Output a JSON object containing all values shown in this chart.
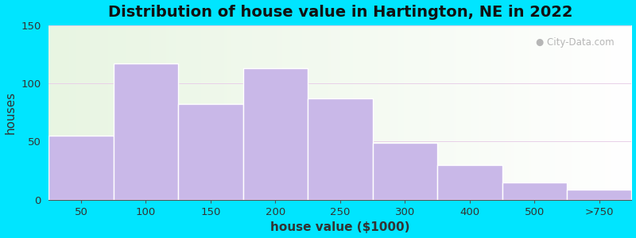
{
  "title": "Distribution of house value in Hartington, NE in 2022",
  "xlabel": "house value ($1000)",
  "ylabel": "houses",
  "categories": [
    "50",
    "100",
    "150",
    "200",
    "250",
    "300",
    "400",
    "500",
    ">750"
  ],
  "values": [
    55,
    117,
    82,
    113,
    87,
    49,
    30,
    15,
    9
  ],
  "bar_color": "#c9b8e8",
  "bar_edgecolor": "#ffffff",
  "ylim": [
    0,
    150
  ],
  "yticks": [
    0,
    50,
    100,
    150
  ],
  "outer_bg": "#00e5ff",
  "plot_bg_left": "#e8f5e2",
  "plot_bg_right": "#f0f8f0",
  "title_fontsize": 14,
  "axis_label_fontsize": 11,
  "watermark": "City-Data.com"
}
